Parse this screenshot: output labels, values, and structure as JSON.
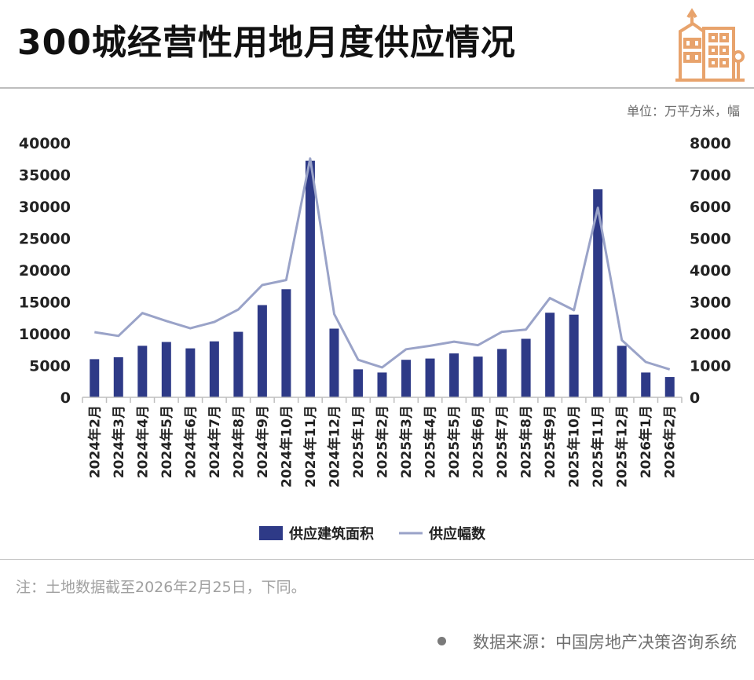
{
  "header": {
    "title": "300城经营性用地月度供应情况",
    "unit": "单位：万平方米，幅"
  },
  "footer": {
    "note": "注：土地数据截至2026年2月25日，下同。",
    "source": "数据来源：中国房地产决策咨询系统"
  },
  "colors": {
    "bar": "#2e3a87",
    "line": "#9aa3c8",
    "logo": "#e8a36c"
  },
  "chart_data": {
    "type": "bar",
    "title": "300城经营性用地月度供应情况",
    "categories": [
      "2024年2月",
      "2024年3月",
      "2024年4月",
      "2024年5月",
      "2024年6月",
      "2024年7月",
      "2024年8月",
      "2024年9月",
      "2024年10月",
      "2024年11月",
      "2024年12月",
      "2025年1月",
      "2025年2月",
      "2025年3月",
      "2025年4月",
      "2025年5月",
      "2025年6月",
      "2025年7月",
      "2025年8月",
      "2025年9月",
      "2025年10月",
      "2025年11月",
      "2025年12月",
      "2026年1月",
      "2026年2月"
    ],
    "series": [
      {
        "name": "供应建筑面积",
        "type": "bar",
        "axis": "left",
        "values": [
          6000,
          6300,
          8100,
          8700,
          7700,
          8800,
          10300,
          14500,
          17000,
          37200,
          10800,
          4400,
          3900,
          5900,
          6100,
          6900,
          6400,
          7600,
          9200,
          13300,
          13000,
          32700,
          8100,
          3900,
          3200
        ]
      },
      {
        "name": "供应幅数",
        "type": "line",
        "axis": "right",
        "values": [
          2050,
          1930,
          2650,
          2400,
          2170,
          2370,
          2760,
          3530,
          3690,
          7510,
          2620,
          1180,
          940,
          1510,
          1620,
          1750,
          1640,
          2060,
          2130,
          3120,
          2740,
          5960,
          1800,
          1110,
          880
        ]
      }
    ],
    "yleft_ticks": [
      "40000",
      "35000",
      "30000",
      "25000",
      "20000",
      "15000",
      "10000",
      "5000",
      "0"
    ],
    "yright_ticks": [
      "8000",
      "7000",
      "6000",
      "5000",
      "4000",
      "3000",
      "2000",
      "1000",
      "0"
    ],
    "ylim_left": [
      0,
      40000
    ],
    "ylim_right": [
      0,
      8000
    ],
    "legend": {
      "position": "bottom",
      "entries": [
        "供应建筑面积",
        "供应幅数"
      ]
    }
  }
}
